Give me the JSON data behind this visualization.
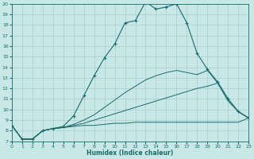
{
  "background_color": "#c8e8e8",
  "grid_color": "#a8cccc",
  "line_color": "#1a6b6b",
  "xlabel": "Humidex (Indice chaleur)",
  "xlim": [
    0,
    23
  ],
  "ylim": [
    7,
    20
  ],
  "xticks": [
    0,
    1,
    2,
    3,
    4,
    5,
    6,
    7,
    8,
    9,
    10,
    11,
    12,
    13,
    14,
    15,
    16,
    17,
    18,
    19,
    20,
    21,
    22,
    23
  ],
  "yticks": [
    7,
    8,
    9,
    10,
    11,
    12,
    13,
    14,
    15,
    16,
    17,
    18,
    19,
    20
  ],
  "main_x": [
    0,
    1,
    2,
    3,
    4,
    5,
    6,
    7,
    8,
    9,
    10,
    11,
    12,
    13,
    14,
    15,
    16,
    17,
    18,
    19,
    20,
    21,
    22,
    23
  ],
  "main_y": [
    8.5,
    7.2,
    7.2,
    8.0,
    8.2,
    8.4,
    9.4,
    11.3,
    13.2,
    14.9,
    16.2,
    18.2,
    18.4,
    20.2,
    19.5,
    19.7,
    20.0,
    18.2,
    15.3,
    13.8,
    12.6,
    11.0,
    9.8,
    9.2
  ],
  "line2_x": [
    0,
    1,
    2,
    3,
    4,
    5,
    6,
    7,
    8,
    9,
    10,
    11,
    12,
    13,
    14,
    15,
    16,
    17,
    18,
    19,
    20,
    21,
    22,
    23
  ],
  "line2_y": [
    8.5,
    7.2,
    7.2,
    8.0,
    8.2,
    8.3,
    8.4,
    8.5,
    8.5,
    8.6,
    8.7,
    8.7,
    8.8,
    8.8,
    8.8,
    8.8,
    8.8,
    8.8,
    8.8,
    8.8,
    8.8,
    8.8,
    8.8,
    9.2
  ],
  "line3_x": [
    0,
    1,
    2,
    3,
    4,
    5,
    6,
    7,
    8,
    9,
    10,
    11,
    12,
    13,
    14,
    15,
    16,
    17,
    18,
    19,
    20,
    21,
    22,
    23
  ],
  "line3_y": [
    8.5,
    7.2,
    7.2,
    8.0,
    8.2,
    8.3,
    8.5,
    8.7,
    9.0,
    9.3,
    9.6,
    9.9,
    10.2,
    10.5,
    10.8,
    11.1,
    11.4,
    11.7,
    12.0,
    12.2,
    12.5,
    11.0,
    9.8,
    9.2
  ],
  "line4_x": [
    0,
    1,
    2,
    3,
    4,
    5,
    6,
    7,
    8,
    9,
    10,
    11,
    12,
    13,
    14,
    15,
    16,
    17,
    18,
    19,
    20,
    21,
    22,
    23
  ],
  "line4_y": [
    8.5,
    7.2,
    7.2,
    8.0,
    8.2,
    8.3,
    8.6,
    9.0,
    9.5,
    10.2,
    10.9,
    11.6,
    12.2,
    12.8,
    13.2,
    13.5,
    13.7,
    13.5,
    13.3,
    13.7,
    12.5,
    10.8,
    9.8,
    9.2
  ]
}
